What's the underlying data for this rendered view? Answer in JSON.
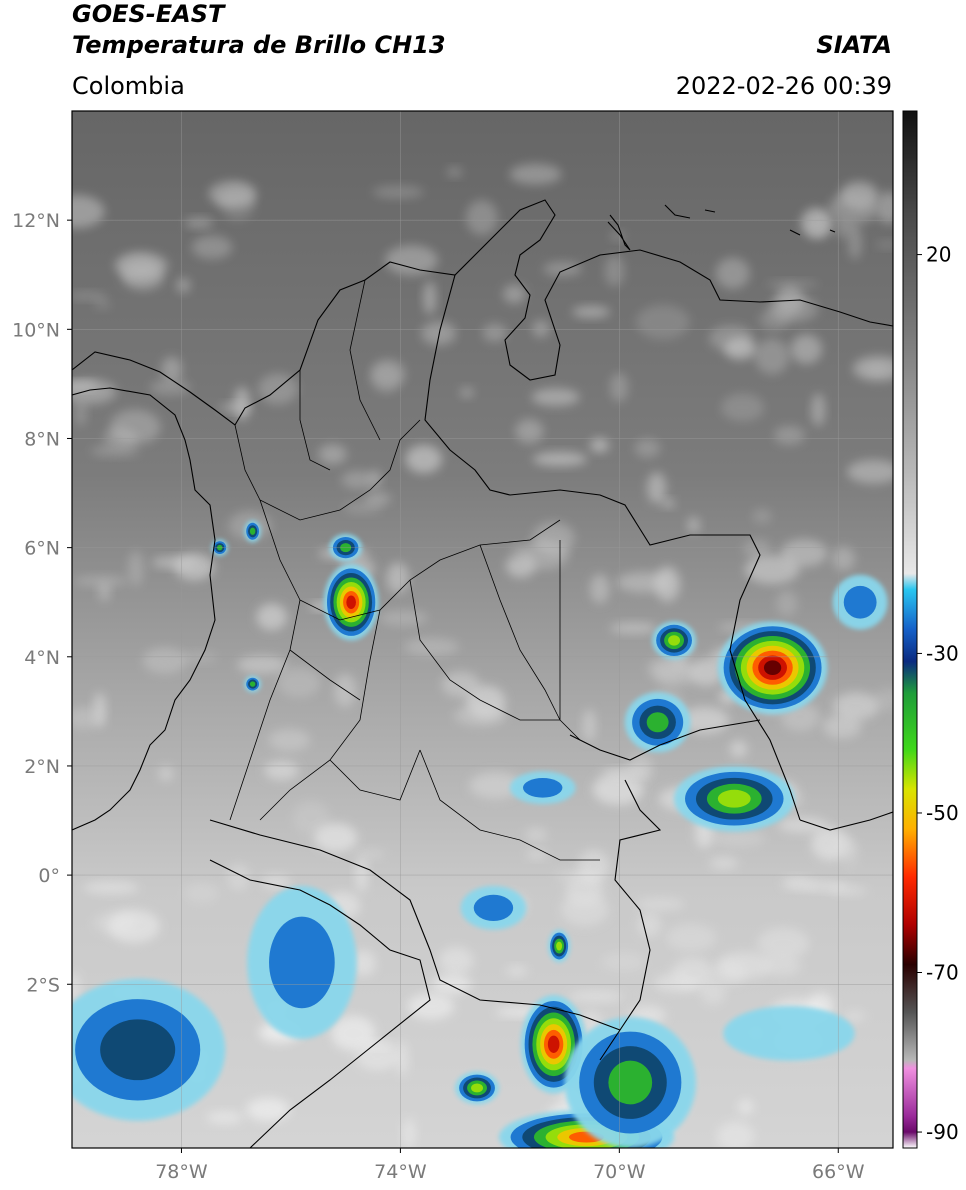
{
  "header": {
    "title_line1": "GOES-EAST",
    "title_line2": "Temperatura de Brillo CH13",
    "region": "Colombia",
    "source": "SIATA",
    "datetime": "2022-02-26 00:39"
  },
  "map": {
    "lon_range": [
      -80,
      -65
    ],
    "lat_range": [
      -5,
      14
    ],
    "lat_ticks": [
      {
        "value": 12,
        "label": "12°N"
      },
      {
        "value": 10,
        "label": "10°N"
      },
      {
        "value": 8,
        "label": "8°N"
      },
      {
        "value": 6,
        "label": "6°N"
      },
      {
        "value": 4,
        "label": "4°N"
      },
      {
        "value": 2,
        "label": "2°N"
      },
      {
        "value": 0,
        "label": "0°"
      },
      {
        "value": -2,
        "label": "2°S"
      }
    ],
    "lon_ticks": [
      {
        "value": -78,
        "label": "78°W"
      },
      {
        "value": -74,
        "label": "74°W"
      },
      {
        "value": -70,
        "label": "70°W"
      },
      {
        "value": -66,
        "label": "66°W"
      }
    ],
    "grid": true,
    "storm_cells": [
      {
        "lon": -67.2,
        "lat": 3.8,
        "rlon": 1.0,
        "rlat": 0.85,
        "peak": -70
      },
      {
        "lon": -67.9,
        "lat": 1.4,
        "rlon": 1.1,
        "rlat": 0.6,
        "peak": -48
      },
      {
        "lon": -69.3,
        "lat": 2.8,
        "rlon": 0.6,
        "rlat": 0.55,
        "peak": -38
      },
      {
        "lon": -69.0,
        "lat": 4.3,
        "rlon": 0.4,
        "rlat": 0.35,
        "peak": -45
      },
      {
        "lon": -74.9,
        "lat": 5.0,
        "rlon": 0.5,
        "rlat": 0.7,
        "peak": -65
      },
      {
        "lon": -75.0,
        "lat": 6.0,
        "rlon": 0.3,
        "rlat": 0.25,
        "peak": -40
      },
      {
        "lon": -71.2,
        "lat": -3.1,
        "rlon": 0.6,
        "rlat": 0.9,
        "peak": -62
      },
      {
        "lon": -70.6,
        "lat": -4.8,
        "rlon": 1.6,
        "rlat": 0.5,
        "peak": -60
      },
      {
        "lon": -69.8,
        "lat": -3.8,
        "rlon": 1.2,
        "rlat": 1.2,
        "peak": -40
      },
      {
        "lon": -78.8,
        "lat": -3.2,
        "rlon": 1.6,
        "rlat": 1.3,
        "peak": -35
      },
      {
        "lon": -75.8,
        "lat": -1.6,
        "rlon": 1.0,
        "rlat": 1.4,
        "peak": -30
      },
      {
        "lon": -72.6,
        "lat": -3.9,
        "rlon": 0.4,
        "rlat": 0.3,
        "peak": -45
      },
      {
        "lon": -72.3,
        "lat": -0.6,
        "rlon": 0.6,
        "rlat": 0.4,
        "peak": -28
      },
      {
        "lon": -71.1,
        "lat": -1.3,
        "rlon": 0.2,
        "rlat": 0.3,
        "peak": -45
      },
      {
        "lon": -76.7,
        "lat": 6.3,
        "rlon": 0.15,
        "rlat": 0.2,
        "peak": -42
      },
      {
        "lon": -77.3,
        "lat": 6.0,
        "rlon": 0.15,
        "rlat": 0.15,
        "peak": -42
      },
      {
        "lon": -76.7,
        "lat": 3.5,
        "rlon": 0.15,
        "rlat": 0.15,
        "peak": -42
      },
      {
        "lon": -66.9,
        "lat": -2.9,
        "rlon": 1.2,
        "rlat": 0.5,
        "peak": -25
      },
      {
        "lon": -65.6,
        "lat": 5.0,
        "rlon": 0.5,
        "rlat": 0.5,
        "peak": -26
      },
      {
        "lon": -71.4,
        "lat": 1.6,
        "rlon": 0.6,
        "rlat": 0.3,
        "peak": -28
      }
    ]
  },
  "colorbar": {
    "ticks": [
      {
        "value": 20,
        "label": "20"
      },
      {
        "value": -30,
        "label": "-30"
      },
      {
        "value": -50,
        "label": "-50"
      },
      {
        "value": -70,
        "label": "-70"
      },
      {
        "value": -90,
        "label": "-90"
      }
    ],
    "range": [
      -92,
      38
    ]
  },
  "colors": {
    "background": "#ffffff",
    "border": "#000000",
    "tick_label": "#7a7a7a",
    "cold_top": "#1a1a1a",
    "warm_surface": "#6e6e6e"
  }
}
